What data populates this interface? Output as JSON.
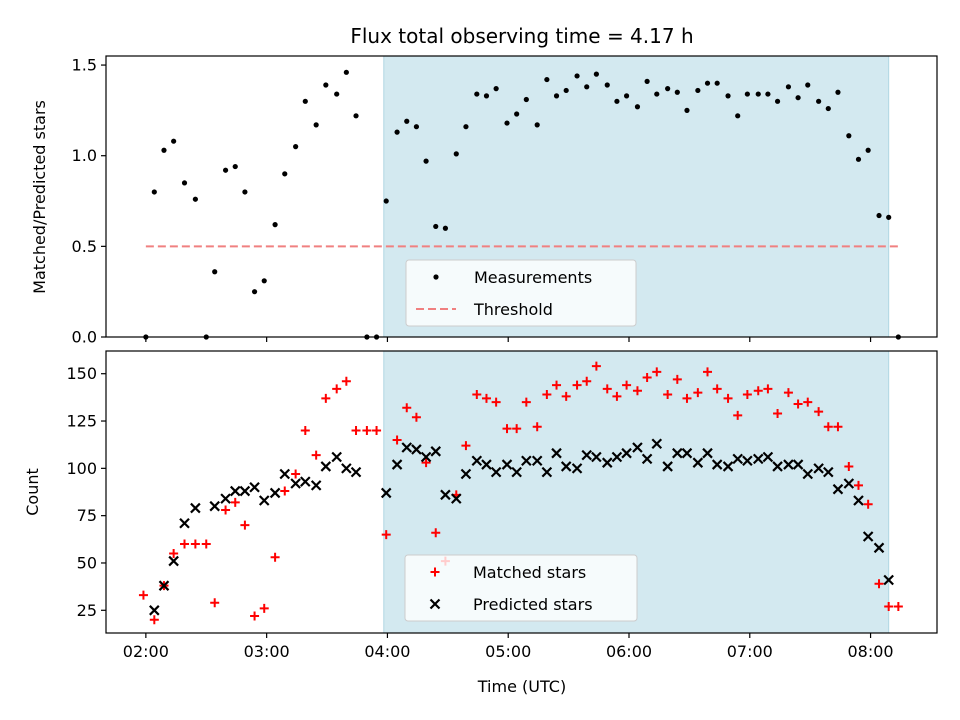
{
  "chart_data": {
    "type": "scatter",
    "title": "Flux total observing time = 4.17 h",
    "xlabel": "Time (UTC)",
    "x_ticks": [
      "02:00",
      "03:00",
      "04:00",
      "05:00",
      "06:00",
      "07:00",
      "08:00"
    ],
    "x_range_hours": [
      1.67,
      8.55
    ],
    "highlight_span_hours": [
      3.97,
      8.15
    ],
    "panels": [
      {
        "ylabel": "Matched/Predicted stars",
        "ylim": [
          0,
          1.55
        ],
        "y_ticks": [
          "0.0",
          "0.5",
          "1.0",
          "1.5"
        ],
        "y_tick_values": [
          0,
          0.5,
          1.0,
          1.5
        ],
        "legend": [
          "Measurements",
          "Threshold"
        ],
        "threshold": {
          "name": "Threshold",
          "value": 0.5,
          "x_range_hours": [
            2.0,
            8.25
          ],
          "color": "#f08080"
        },
        "series": [
          {
            "name": "Measurements",
            "marker": "dot",
            "color": "#000000",
            "points": [
              [
                2.0,
                0.0
              ],
              [
                2.07,
                0.8
              ],
              [
                2.15,
                1.03
              ],
              [
                2.23,
                1.08
              ],
              [
                2.32,
                0.85
              ],
              [
                2.41,
                0.76
              ],
              [
                2.5,
                0.0
              ],
              [
                2.57,
                0.36
              ],
              [
                2.66,
                0.92
              ],
              [
                2.74,
                0.94
              ],
              [
                2.82,
                0.8
              ],
              [
                2.9,
                0.25
              ],
              [
                2.98,
                0.31
              ],
              [
                3.07,
                0.62
              ],
              [
                3.15,
                0.9
              ],
              [
                3.24,
                1.05
              ],
              [
                3.32,
                1.3
              ],
              [
                3.41,
                1.17
              ],
              [
                3.49,
                1.39
              ],
              [
                3.58,
                1.34
              ],
              [
                3.66,
                1.46
              ],
              [
                3.74,
                1.22
              ],
              [
                3.83,
                0.0
              ],
              [
                3.91,
                0.0
              ],
              [
                3.99,
                0.75
              ],
              [
                4.08,
                1.13
              ],
              [
                4.16,
                1.19
              ],
              [
                4.24,
                1.16
              ],
              [
                4.32,
                0.97
              ],
              [
                4.4,
                0.61
              ],
              [
                4.48,
                0.6
              ],
              [
                4.57,
                1.01
              ],
              [
                4.65,
                1.16
              ],
              [
                4.74,
                1.34
              ],
              [
                4.82,
                1.33
              ],
              [
                4.9,
                1.37
              ],
              [
                4.99,
                1.18
              ],
              [
                5.07,
                1.23
              ],
              [
                5.15,
                1.31
              ],
              [
                5.24,
                1.17
              ],
              [
                5.32,
                1.42
              ],
              [
                5.4,
                1.33
              ],
              [
                5.48,
                1.36
              ],
              [
                5.57,
                1.44
              ],
              [
                5.65,
                1.38
              ],
              [
                5.73,
                1.45
              ],
              [
                5.82,
                1.39
              ],
              [
                5.9,
                1.3
              ],
              [
                5.98,
                1.33
              ],
              [
                6.07,
                1.27
              ],
              [
                6.15,
                1.41
              ],
              [
                6.23,
                1.34
              ],
              [
                6.32,
                1.37
              ],
              [
                6.4,
                1.35
              ],
              [
                6.48,
                1.25
              ],
              [
                6.57,
                1.36
              ],
              [
                6.65,
                1.4
              ],
              [
                6.73,
                1.4
              ],
              [
                6.82,
                1.33
              ],
              [
                6.9,
                1.22
              ],
              [
                6.98,
                1.34
              ],
              [
                7.07,
                1.34
              ],
              [
                7.15,
                1.34
              ],
              [
                7.23,
                1.3
              ],
              [
                7.32,
                1.38
              ],
              [
                7.4,
                1.32
              ],
              [
                7.48,
                1.39
              ],
              [
                7.57,
                1.3
              ],
              [
                7.65,
                1.26
              ],
              [
                7.73,
                1.35
              ],
              [
                7.82,
                1.11
              ],
              [
                7.9,
                0.98
              ],
              [
                7.98,
                1.03
              ],
              [
                8.07,
                0.67
              ],
              [
                8.15,
                0.66
              ],
              [
                8.23,
                0.0
              ]
            ]
          }
        ]
      },
      {
        "ylabel": "Count",
        "ylim": [
          13,
          162
        ],
        "y_ticks": [
          "25",
          "50",
          "75",
          "100",
          "125",
          "150"
        ],
        "y_tick_values": [
          25,
          50,
          75,
          100,
          125,
          150
        ],
        "legend": [
          "Matched stars",
          "Predicted stars"
        ],
        "series": [
          {
            "name": "Matched stars",
            "marker": "plus",
            "color": "#ff0000",
            "points": [
              [
                1.98,
                33
              ],
              [
                2.07,
                20
              ],
              [
                2.15,
                38
              ],
              [
                2.23,
                55
              ],
              [
                2.32,
                60
              ],
              [
                2.41,
                60
              ],
              [
                2.5,
                60
              ],
              [
                2.57,
                29
              ],
              [
                2.66,
                78
              ],
              [
                2.74,
                82
              ],
              [
                2.82,
                70
              ],
              [
                2.9,
                22
              ],
              [
                2.98,
                26
              ],
              [
                3.07,
                53
              ],
              [
                3.15,
                88
              ],
              [
                3.24,
                97
              ],
              [
                3.32,
                120
              ],
              [
                3.41,
                107
              ],
              [
                3.49,
                137
              ],
              [
                3.58,
                142
              ],
              [
                3.66,
                146
              ],
              [
                3.74,
                120
              ],
              [
                3.83,
                120
              ],
              [
                3.91,
                120
              ],
              [
                3.99,
                65
              ],
              [
                4.08,
                115
              ],
              [
                4.16,
                132
              ],
              [
                4.24,
                127
              ],
              [
                4.32,
                103
              ],
              [
                4.4,
                66
              ],
              [
                4.48,
                51
              ],
              [
                4.57,
                86
              ],
              [
                4.65,
                112
              ],
              [
                4.74,
                139
              ],
              [
                4.82,
                137
              ],
              [
                4.9,
                135
              ],
              [
                4.99,
                121
              ],
              [
                5.07,
                121
              ],
              [
                5.15,
                135
              ],
              [
                5.24,
                122
              ],
              [
                5.32,
                139
              ],
              [
                5.4,
                144
              ],
              [
                5.48,
                138
              ],
              [
                5.57,
                144
              ],
              [
                5.65,
                146
              ],
              [
                5.73,
                154
              ],
              [
                5.82,
                142
              ],
              [
                5.9,
                138
              ],
              [
                5.98,
                144
              ],
              [
                6.07,
                141
              ],
              [
                6.15,
                148
              ],
              [
                6.23,
                151
              ],
              [
                6.32,
                139
              ],
              [
                6.4,
                147
              ],
              [
                6.48,
                137
              ],
              [
                6.57,
                140
              ],
              [
                6.65,
                151
              ],
              [
                6.73,
                142
              ],
              [
                6.82,
                137
              ],
              [
                6.9,
                128
              ],
              [
                6.98,
                139
              ],
              [
                7.07,
                141
              ],
              [
                7.15,
                142
              ],
              [
                7.23,
                129
              ],
              [
                7.32,
                140
              ],
              [
                7.4,
                134
              ],
              [
                7.48,
                135
              ],
              [
                7.57,
                130
              ],
              [
                7.65,
                122
              ],
              [
                7.73,
                122
              ],
              [
                7.82,
                101
              ],
              [
                7.9,
                91
              ],
              [
                7.98,
                81
              ],
              [
                8.07,
                39
              ],
              [
                8.15,
                27
              ],
              [
                8.23,
                27
              ]
            ]
          },
          {
            "name": "Predicted stars",
            "marker": "x",
            "color": "#000000",
            "points": [
              [
                2.07,
                25
              ],
              [
                2.15,
                38
              ],
              [
                2.23,
                51
              ],
              [
                2.32,
                71
              ],
              [
                2.41,
                79
              ],
              [
                2.57,
                80
              ],
              [
                2.66,
                84
              ],
              [
                2.74,
                88
              ],
              [
                2.82,
                88
              ],
              [
                2.9,
                90
              ],
              [
                2.98,
                83
              ],
              [
                3.07,
                87
              ],
              [
                3.15,
                97
              ],
              [
                3.24,
                92
              ],
              [
                3.32,
                93
              ],
              [
                3.41,
                91
              ],
              [
                3.49,
                101
              ],
              [
                3.58,
                106
              ],
              [
                3.66,
                100
              ],
              [
                3.74,
                98
              ],
              [
                3.99,
                87
              ],
              [
                4.08,
                102
              ],
              [
                4.16,
                111
              ],
              [
                4.24,
                110
              ],
              [
                4.32,
                106
              ],
              [
                4.4,
                109
              ],
              [
                4.48,
                86
              ],
              [
                4.57,
                84
              ],
              [
                4.65,
                97
              ],
              [
                4.74,
                104
              ],
              [
                4.82,
                102
              ],
              [
                4.9,
                98
              ],
              [
                4.99,
                102
              ],
              [
                5.07,
                98
              ],
              [
                5.15,
                104
              ],
              [
                5.24,
                104
              ],
              [
                5.32,
                98
              ],
              [
                5.4,
                108
              ],
              [
                5.48,
                101
              ],
              [
                5.57,
                100
              ],
              [
                5.65,
                107
              ],
              [
                5.73,
                106
              ],
              [
                5.82,
                103
              ],
              [
                5.9,
                106
              ],
              [
                5.98,
                108
              ],
              [
                6.07,
                111
              ],
              [
                6.15,
                105
              ],
              [
                6.23,
                113
              ],
              [
                6.32,
                101
              ],
              [
                6.4,
                108
              ],
              [
                6.48,
                108
              ],
              [
                6.57,
                103
              ],
              [
                6.65,
                108
              ],
              [
                6.73,
                102
              ],
              [
                6.82,
                101
              ],
              [
                6.9,
                105
              ],
              [
                6.98,
                104
              ],
              [
                7.07,
                105
              ],
              [
                7.15,
                106
              ],
              [
                7.23,
                101
              ],
              [
                7.32,
                102
              ],
              [
                7.4,
                102
              ],
              [
                7.48,
                97
              ],
              [
                7.57,
                100
              ],
              [
                7.65,
                98
              ],
              [
                7.73,
                89
              ],
              [
                7.82,
                92
              ],
              [
                7.9,
                83
              ],
              [
                7.98,
                64
              ],
              [
                8.07,
                58
              ],
              [
                8.15,
                41
              ]
            ]
          }
        ]
      }
    ],
    "colors": {
      "span": "#d3e9f0",
      "span_edge": "#b0d6e2",
      "threshold": "#f08080",
      "matched": "#ff0000",
      "predicted": "#000000"
    },
    "grid": false,
    "legend_position": "lower center"
  }
}
